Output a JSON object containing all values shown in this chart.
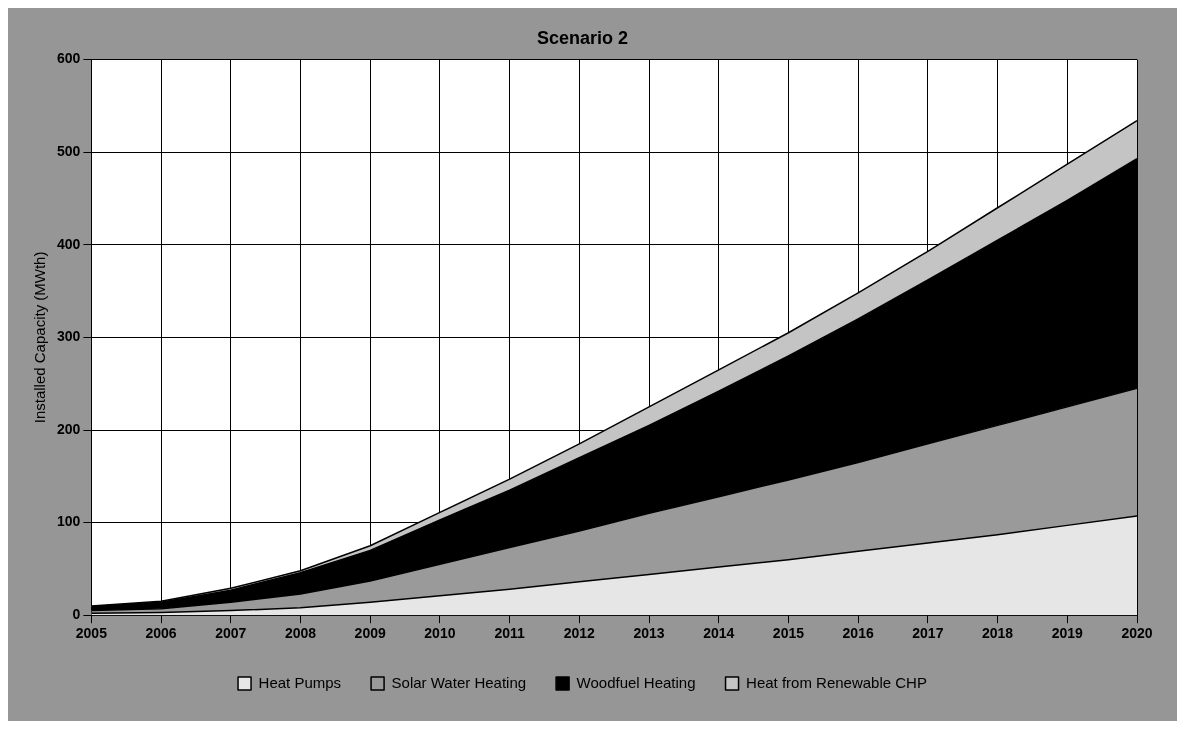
{
  "chart_data": {
    "type": "area",
    "title": "Scenario 2",
    "ylabel": "Installed Capacity (MWth)",
    "stacked": true,
    "grid": true,
    "legend": "bottom",
    "x": [
      2005,
      2006,
      2007,
      2008,
      2009,
      2010,
      2011,
      2012,
      2013,
      2014,
      2015,
      2016,
      2017,
      2018,
      2019,
      2020
    ],
    "xlim": [
      2005,
      2020
    ],
    "xticks": [
      2005,
      2006,
      2007,
      2008,
      2009,
      2010,
      2011,
      2012,
      2013,
      2014,
      2015,
      2016,
      2017,
      2018,
      2019,
      2020
    ],
    "ylim": [
      0,
      600
    ],
    "yticks": [
      0,
      100,
      200,
      300,
      400,
      500,
      600
    ],
    "series": [
      {
        "name": "Heat Pumps",
        "color": "#e6e6e6",
        "values": [
          2,
          3,
          5,
          8,
          14,
          21,
          28,
          36,
          44,
          52,
          60,
          69,
          78,
          87,
          97,
          107
        ]
      },
      {
        "name": "Solar Water Heating",
        "color": "#9a9a9a",
        "values": [
          3,
          4,
          9,
          15,
          23,
          34,
          45,
          55,
          66,
          76,
          86,
          96,
          107,
          118,
          128,
          138
        ]
      },
      {
        "name": "Woodfuel Heating",
        "color": "#000000",
        "values": [
          4,
          7,
          13,
          23,
          33,
          48,
          62,
          79,
          95,
          114,
          134,
          155,
          177,
          200,
          223,
          248
        ]
      },
      {
        "name": "Heat from Renewable CHP",
        "color": "#c4c4c4",
        "values": [
          1,
          1,
          2,
          2,
          5,
          8,
          12,
          15,
          20,
          23,
          25,
          28,
          31,
          35,
          39,
          41
        ]
      }
    ]
  }
}
